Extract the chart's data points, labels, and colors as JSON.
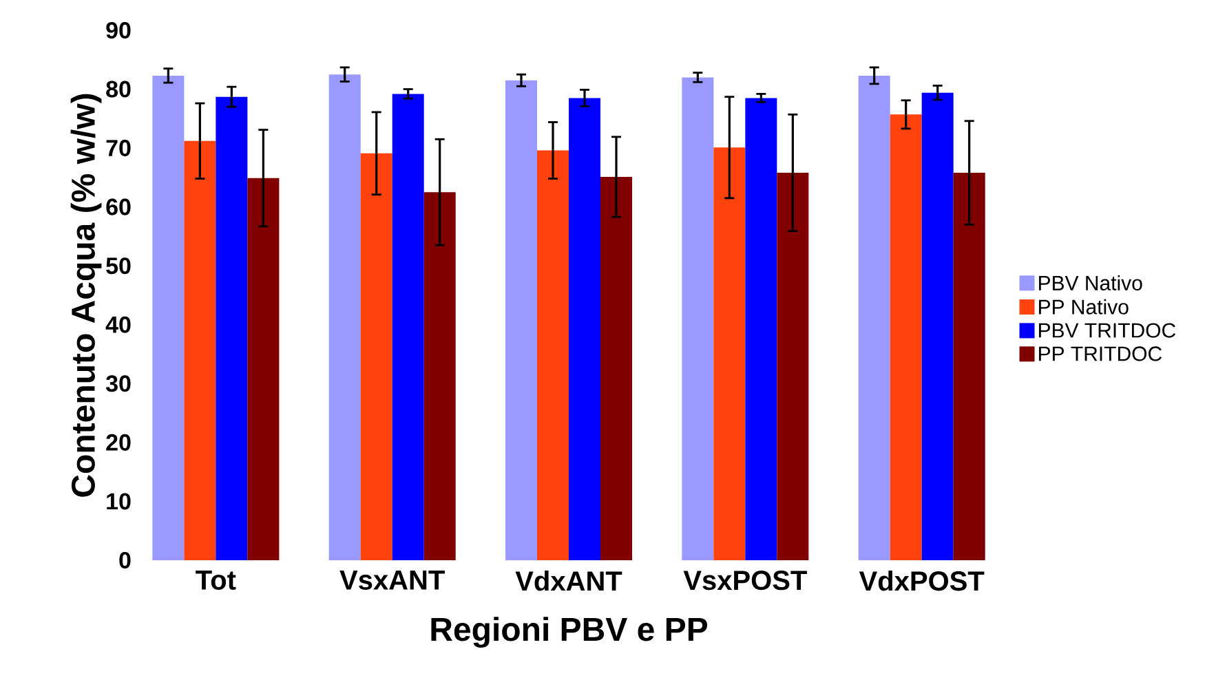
{
  "chart_data": {
    "type": "bar",
    "xlabel": "Regioni PBV e PP",
    "ylabel": "Contenuto Acqua (% w/w)",
    "categories": [
      "Tot",
      "VsxANT",
      "VdxANT",
      "VsxPOST",
      "VdxPOST"
    ],
    "series": [
      {
        "name": "PBV Nativo",
        "color": "#9999ff",
        "values": [
          82.3,
          82.5,
          81.5,
          82.0,
          82.3
        ],
        "errors": [
          1.2,
          1.2,
          1.0,
          0.8,
          1.4
        ]
      },
      {
        "name": "PP Nativo",
        "color": "#ff420e",
        "values": [
          71.2,
          69.1,
          69.6,
          70.1,
          75.7
        ],
        "errors": [
          6.4,
          7.0,
          4.8,
          8.6,
          2.4
        ]
      },
      {
        "name": "PBV TRITDOC",
        "color": "#0000ff",
        "values": [
          78.7,
          79.2,
          78.5,
          78.5,
          79.4
        ],
        "errors": [
          1.7,
          0.8,
          1.4,
          0.7,
          1.2
        ]
      },
      {
        "name": "PP TRITDOC",
        "color": "#800000",
        "values": [
          64.9,
          62.5,
          65.1,
          65.8,
          65.8
        ],
        "errors": [
          8.2,
          9.0,
          6.8,
          9.9,
          8.8
        ]
      }
    ],
    "ylim": [
      0,
      90
    ],
    "yticks": [
      0,
      10,
      20,
      30,
      40,
      50,
      60,
      70,
      80,
      90
    ],
    "grid": false,
    "legend": "right"
  }
}
